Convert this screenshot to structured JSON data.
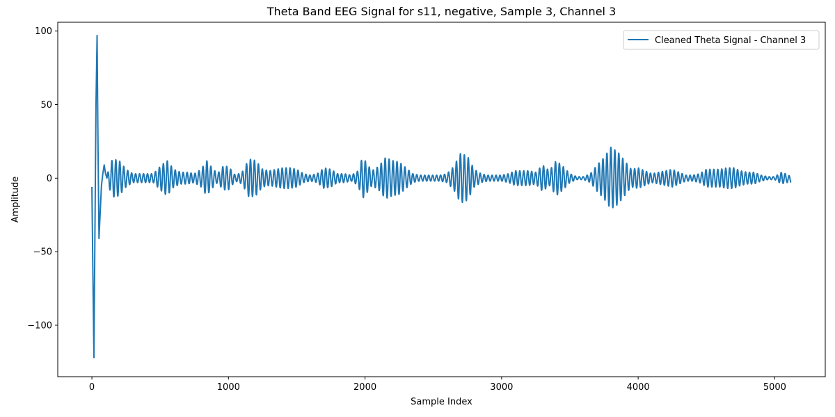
{
  "chart_data": {
    "type": "line",
    "title": "Theta Band EEG Signal for s11, negative, Sample 3, Channel 3",
    "xlabel": "Sample Index",
    "ylabel": "Amplitude",
    "xlim": [
      -250,
      5370
    ],
    "ylim": [
      -135,
      106
    ],
    "xticks": [
      0,
      1000,
      2000,
      3000,
      4000,
      5000
    ],
    "yticks": [
      -100,
      -50,
      0,
      50,
      100
    ],
    "xtick_labels": [
      "0",
      "1000",
      "2000",
      "3000",
      "4000",
      "5000"
    ],
    "ytick_labels": [
      "−100",
      "−50",
      "0",
      "50",
      "100"
    ],
    "grid": false,
    "legend_position": "top-right",
    "color": "#1f77b4",
    "series": [
      {
        "name": "Cleaned Theta Signal - Channel 3",
        "sample_count": 5120,
        "transient": {
          "x": [
            0,
            8,
            15,
            22,
            30,
            38,
            45,
            52,
            60,
            70,
            80,
            90,
            100,
            110
          ],
          "y": [
            -6,
            -70,
            -122,
            -40,
            50,
            97,
            20,
            -41,
            -25,
            -5,
            3,
            9,
            3,
            0
          ]
        },
        "envelope": {
          "x": [
            110,
            150,
            200,
            250,
            300,
            350,
            400,
            450,
            500,
            550,
            600,
            650,
            700,
            750,
            800,
            840,
            880,
            920,
            960,
            1000,
            1050,
            1100,
            1150,
            1200,
            1250,
            1300,
            1350,
            1400,
            1450,
            1500,
            1550,
            1600,
            1650,
            1700,
            1750,
            1800,
            1850,
            1900,
            1950,
            1980,
            2000,
            2050,
            2100,
            2150,
            2200,
            2250,
            2300,
            2350,
            2400,
            2450,
            2500,
            2550,
            2600,
            2650,
            2700,
            2750,
            2800,
            2850,
            2900,
            2950,
            3000,
            3050,
            3100,
            3150,
            3200,
            3250,
            3300,
            3350,
            3400,
            3450,
            3500,
            3550,
            3600,
            3650,
            3700,
            3750,
            3800,
            3850,
            3900,
            3950,
            4000,
            4050,
            4100,
            4150,
            4200,
            4250,
            4300,
            4350,
            4400,
            4450,
            4500,
            4550,
            4600,
            4650,
            4700,
            4750,
            4800,
            4850,
            4900,
            4950,
            5000,
            5050,
            5080,
            5120
          ],
          "y": [
            2,
            13,
            12,
            6,
            3,
            3,
            3,
            3,
            8,
            12,
            6,
            4,
            4,
            3,
            6,
            12,
            7,
            3,
            8,
            8,
            2,
            4,
            13,
            12,
            6,
            5,
            6,
            7,
            7,
            6,
            3,
            2,
            3,
            7,
            6,
            3,
            3,
            2,
            5,
            14,
            12,
            5,
            8,
            14,
            12,
            11,
            7,
            3,
            2,
            2,
            2,
            2,
            3,
            8,
            17,
            15,
            6,
            3,
            2,
            2,
            2,
            3,
            5,
            5,
            5,
            4,
            9,
            5,
            12,
            8,
            3,
            1,
            1,
            3,
            9,
            14,
            21,
            18,
            12,
            6,
            7,
            5,
            3,
            4,
            5,
            6,
            4,
            2,
            2,
            3,
            6,
            6,
            6,
            7,
            7,
            5,
            4,
            4,
            2,
            1,
            1,
            4,
            3,
            2
          ]
        },
        "period_samples": 29,
        "end_offset": -1
      }
    ]
  }
}
